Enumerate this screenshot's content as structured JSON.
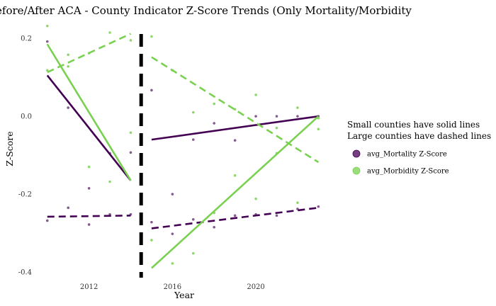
{
  "chart_data": {
    "type": "scatter",
    "title": "Before/After ACA - County Indicator Z-Score Trends (Only Mortality/Morbidity",
    "xlabel": "Year",
    "ylabel": "Z-Score",
    "xlim": [
      2009.6,
      2023.6
    ],
    "ylim": [
      -0.42,
      0.235
    ],
    "x_ticks": [
      2012,
      2016,
      2020
    ],
    "y_ticks": [
      -0.4,
      -0.2,
      0.0,
      0.2
    ],
    "x_tick_labels": [
      "2012",
      "2016",
      "2020"
    ],
    "y_tick_labels": [
      "-0.4",
      "-0.2",
      "0.0",
      "0.2"
    ],
    "grid": false,
    "legend_position": "right",
    "legend": {
      "title_lines": [
        "Small counties have solid lines",
        "Large counties have dashed lines"
      ],
      "entries": [
        {
          "label": "avg_Mortality Z-Score",
          "color": "#440154"
        },
        {
          "label": "avg_Morbidity Z-Score",
          "color": "#7ad151"
        }
      ]
    },
    "vline": {
      "x": 2014.5,
      "style": "dashed",
      "color": "#000000"
    },
    "series": [
      {
        "name": "avg_Mortality Z-Score",
        "color": "#440154",
        "small_points": [
          {
            "x": 2010,
            "y": 0.192
          },
          {
            "x": 2011,
            "y": 0.022
          },
          {
            "x": 2012,
            "y": -0.185
          },
          {
            "x": 2013,
            "y": -0.095
          },
          {
            "x": 2014,
            "y": -0.093
          },
          {
            "x": 2015,
            "y": 0.067
          },
          {
            "x": 2016,
            "y": -0.2
          },
          {
            "x": 2017,
            "y": -0.06
          },
          {
            "x": 2018,
            "y": -0.018
          },
          {
            "x": 2019,
            "y": -0.062
          },
          {
            "x": 2020,
            "y": 0.0
          },
          {
            "x": 2021,
            "y": 0.0
          },
          {
            "x": 2022,
            "y": 0.0
          },
          {
            "x": 2023,
            "y": 0.0
          }
        ],
        "large_points": [
          {
            "x": 2010,
            "y": -0.268
          },
          {
            "x": 2011,
            "y": -0.235
          },
          {
            "x": 2012,
            "y": -0.278
          },
          {
            "x": 2013,
            "y": -0.252
          },
          {
            "x": 2014,
            "y": -0.252
          },
          {
            "x": 2015,
            "y": -0.272
          },
          {
            "x": 2016,
            "y": -0.302
          },
          {
            "x": 2017,
            "y": -0.265
          },
          {
            "x": 2018,
            "y": -0.285
          },
          {
            "x": 2019,
            "y": -0.255
          },
          {
            "x": 2020,
            "y": -0.252
          },
          {
            "x": 2021,
            "y": -0.255
          },
          {
            "x": 2022,
            "y": -0.238
          },
          {
            "x": 2023,
            "y": -0.232
          }
        ],
        "trend_lines": [
          {
            "style": "solid",
            "x": [
              2010,
              2014
            ],
            "y": [
              0.105,
              -0.165
            ]
          },
          {
            "style": "solid",
            "x": [
              2015,
              2023
            ],
            "y": [
              -0.06,
              0.0
            ]
          },
          {
            "style": "dashed",
            "x": [
              2010,
              2014
            ],
            "y": [
              -0.258,
              -0.255
            ]
          },
          {
            "style": "dashed",
            "x": [
              2015,
              2023
            ],
            "y": [
              -0.288,
              -0.235
            ]
          }
        ]
      },
      {
        "name": "avg_Morbidity Z-Score",
        "color": "#7ad151",
        "small_points": [
          {
            "x": 2010,
            "y": 0.232
          },
          {
            "x": 2011,
            "y": 0.158
          },
          {
            "x": 2012,
            "y": -0.13
          },
          {
            "x": 2013,
            "y": -0.168
          },
          {
            "x": 2014,
            "y": -0.042
          },
          {
            "x": 2015,
            "y": -0.318
          },
          {
            "x": 2016,
            "y": -0.378
          },
          {
            "x": 2017,
            "y": -0.352
          },
          {
            "x": 2018,
            "y": -0.248
          },
          {
            "x": 2019,
            "y": -0.152
          },
          {
            "x": 2020,
            "y": -0.212
          },
          {
            "x": 2021,
            "y": -0.095
          },
          {
            "x": 2022,
            "y": -0.222
          },
          {
            "x": 2023,
            "y": -0.005
          }
        ],
        "large_points": [
          {
            "x": 2010,
            "y": 0.118
          },
          {
            "x": 2011,
            "y": 0.128
          },
          {
            "x": 2012,
            "y": 0.162
          },
          {
            "x": 2013,
            "y": 0.215
          },
          {
            "x": 2014,
            "y": 0.195
          },
          {
            "x": 2015,
            "y": 0.205
          },
          {
            "x": 2016,
            "y": 0.118
          },
          {
            "x": 2017,
            "y": 0.01
          },
          {
            "x": 2018,
            "y": 0.032
          },
          {
            "x": 2019,
            "y": 0.018
          },
          {
            "x": 2020,
            "y": 0.055
          },
          {
            "x": 2021,
            "y": -0.03
          },
          {
            "x": 2022,
            "y": 0.022
          },
          {
            "x": 2023,
            "y": -0.033
          }
        ],
        "trend_lines": [
          {
            "style": "solid",
            "x": [
              2010,
              2014
            ],
            "y": [
              0.185,
              -0.165
            ]
          },
          {
            "style": "solid",
            "x": [
              2015,
              2023
            ],
            "y": [
              -0.39,
              0.0
            ]
          },
          {
            "style": "dashed",
            "x": [
              2010,
              2014
            ],
            "y": [
              0.113,
              0.212
            ]
          },
          {
            "style": "dashed",
            "x": [
              2015,
              2023
            ],
            "y": [
              0.152,
              -0.118
            ]
          }
        ]
      }
    ]
  }
}
